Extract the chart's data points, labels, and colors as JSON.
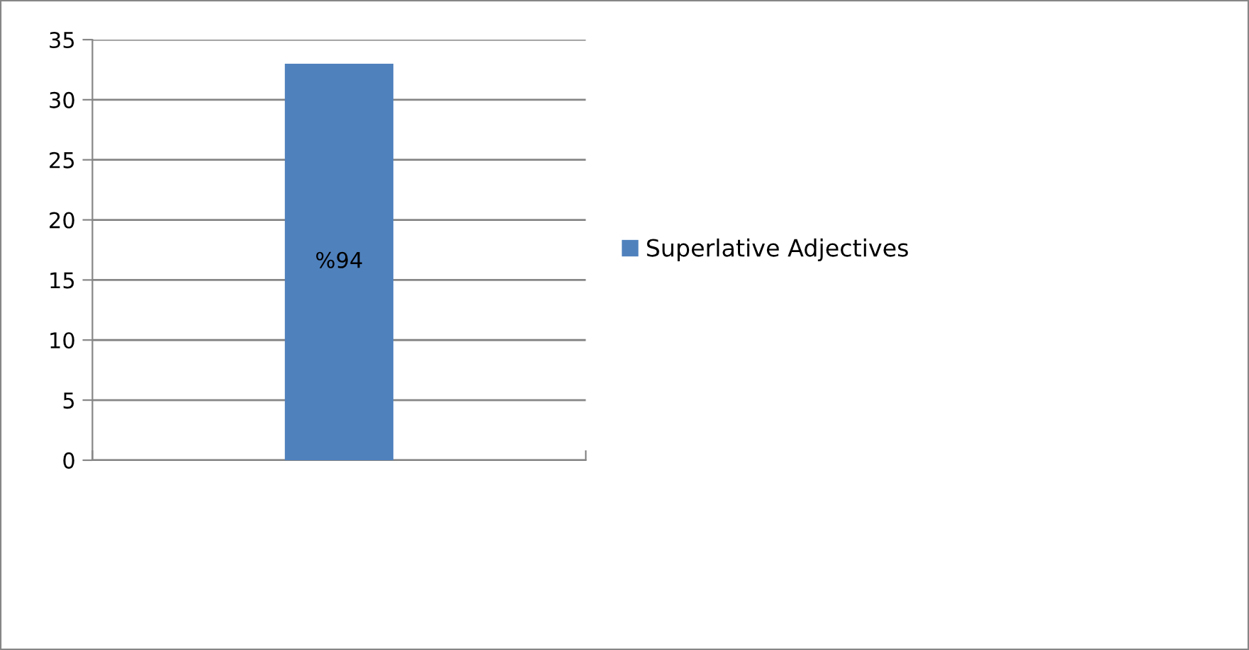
{
  "chart_data": {
    "type": "bar",
    "categories": [
      null
    ],
    "series": [
      {
        "name": "Superlative Adjectives",
        "color": "#4f81bd",
        "values": [
          33
        ]
      }
    ],
    "annotations": [
      "%94"
    ],
    "ylim": [
      0,
      35
    ],
    "yticks": [
      0,
      5,
      10,
      15,
      20,
      25,
      30,
      35
    ],
    "grid": "y",
    "legend": "right"
  }
}
